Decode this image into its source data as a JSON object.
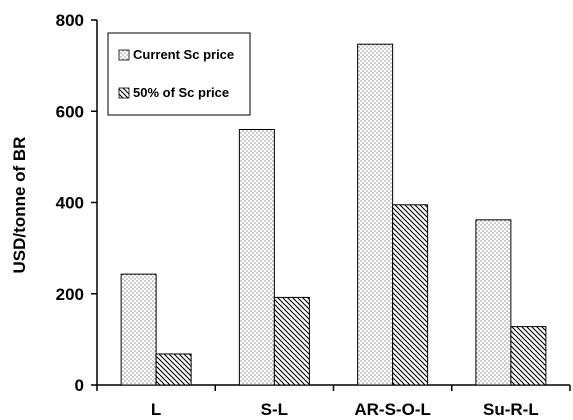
{
  "chart_data": {
    "type": "bar",
    "title": "",
    "xlabel": "",
    "ylabel": "USD/tonne of BR",
    "ylim": [
      0,
      800
    ],
    "yticks": [
      0,
      200,
      400,
      600,
      800
    ],
    "categories": [
      "L",
      "S-L",
      "AR-S-O-L",
      "Su-R-L"
    ],
    "series": [
      {
        "name": "Current Sc price",
        "values": [
          243,
          560,
          747,
          362
        ],
        "pattern": "dots"
      },
      {
        "name": "50% of Sc price",
        "values": [
          68,
          192,
          395,
          128
        ],
        "pattern": "diagonal-hatch"
      }
    ],
    "grid": false,
    "legend": "top-left"
  },
  "colors": {
    "stroke": "#000000",
    "background": "#ffffff",
    "dot": "#555555"
  }
}
